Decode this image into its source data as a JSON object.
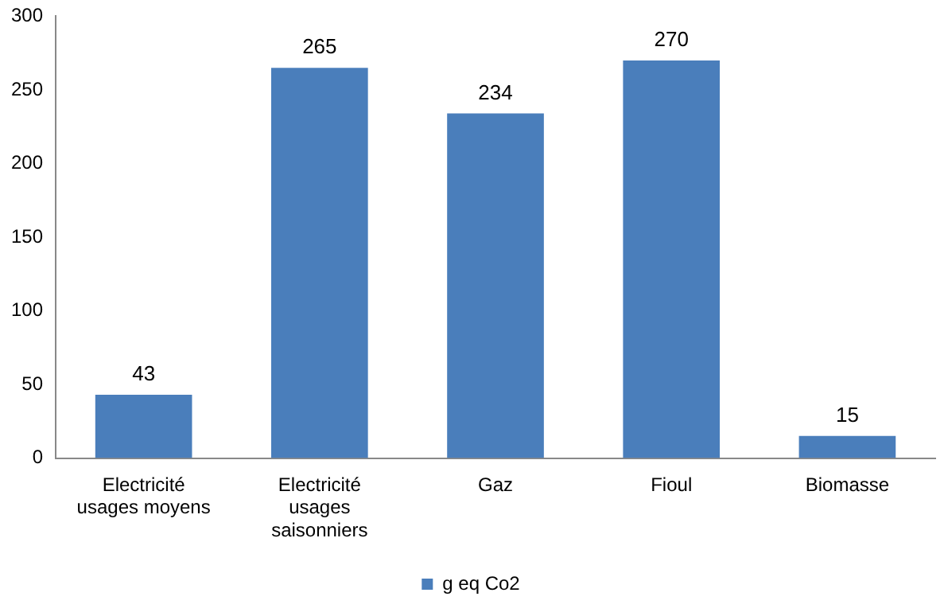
{
  "chart_data": {
    "type": "bar",
    "categories": [
      "Electricité\nusages moyens",
      "Electricité\nusages\nsaisonniers",
      "Gaz",
      "Fioul",
      "Biomasse"
    ],
    "series": [
      {
        "name": "g eq Co2",
        "color": "#4a7ebb",
        "values": [
          43,
          265,
          234,
          270,
          15
        ]
      }
    ],
    "ylim": [
      0,
      300
    ],
    "yticks": [
      0,
      50,
      100,
      150,
      200,
      250,
      300
    ],
    "grid": false,
    "legend": "bottom",
    "data_labels": true
  }
}
